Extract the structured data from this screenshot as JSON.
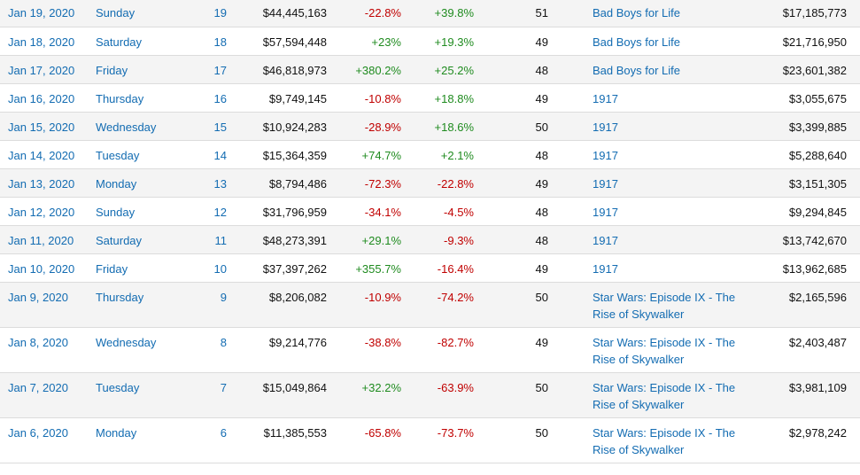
{
  "table": {
    "rows": [
      {
        "date": "Jan 19, 2020",
        "day": "Sunday",
        "num": "19",
        "gross": "$44,445,163",
        "pct_yd": "-22.8%",
        "pct_lw": "+39.8%",
        "theaters": "51",
        "release": "Bad Boys for Life",
        "release_gross": "$17,185,773"
      },
      {
        "date": "Jan 18, 2020",
        "day": "Saturday",
        "num": "18",
        "gross": "$57,594,448",
        "pct_yd": "+23%",
        "pct_lw": "+19.3%",
        "theaters": "49",
        "release": "Bad Boys for Life",
        "release_gross": "$21,716,950"
      },
      {
        "date": "Jan 17, 2020",
        "day": "Friday",
        "num": "17",
        "gross": "$46,818,973",
        "pct_yd": "+380.2%",
        "pct_lw": "+25.2%",
        "theaters": "48",
        "release": "Bad Boys for Life",
        "release_gross": "$23,601,382"
      },
      {
        "date": "Jan 16, 2020",
        "day": "Thursday",
        "num": "16",
        "gross": "$9,749,145",
        "pct_yd": "-10.8%",
        "pct_lw": "+18.8%",
        "theaters": "49",
        "release": "1917",
        "release_gross": "$3,055,675"
      },
      {
        "date": "Jan 15, 2020",
        "day": "Wednesday",
        "num": "15",
        "gross": "$10,924,283",
        "pct_yd": "-28.9%",
        "pct_lw": "+18.6%",
        "theaters": "50",
        "release": "1917",
        "release_gross": "$3,399,885"
      },
      {
        "date": "Jan 14, 2020",
        "day": "Tuesday",
        "num": "14",
        "gross": "$15,364,359",
        "pct_yd": "+74.7%",
        "pct_lw": "+2.1%",
        "theaters": "48",
        "release": "1917",
        "release_gross": "$5,288,640"
      },
      {
        "date": "Jan 13, 2020",
        "day": "Monday",
        "num": "13",
        "gross": "$8,794,486",
        "pct_yd": "-72.3%",
        "pct_lw": "-22.8%",
        "theaters": "49",
        "release": "1917",
        "release_gross": "$3,151,305"
      },
      {
        "date": "Jan 12, 2020",
        "day": "Sunday",
        "num": "12",
        "gross": "$31,796,959",
        "pct_yd": "-34.1%",
        "pct_lw": "-4.5%",
        "theaters": "48",
        "release": "1917",
        "release_gross": "$9,294,845"
      },
      {
        "date": "Jan 11, 2020",
        "day": "Saturday",
        "num": "11",
        "gross": "$48,273,391",
        "pct_yd": "+29.1%",
        "pct_lw": "-9.3%",
        "theaters": "48",
        "release": "1917",
        "release_gross": "$13,742,670"
      },
      {
        "date": "Jan 10, 2020",
        "day": "Friday",
        "num": "10",
        "gross": "$37,397,262",
        "pct_yd": "+355.7%",
        "pct_lw": "-16.4%",
        "theaters": "49",
        "release": "1917",
        "release_gross": "$13,962,685"
      },
      {
        "date": "Jan 9, 2020",
        "day": "Thursday",
        "num": "9",
        "gross": "$8,206,082",
        "pct_yd": "-10.9%",
        "pct_lw": "-74.2%",
        "theaters": "50",
        "release": "Star Wars: Episode IX - The Rise of Skywalker",
        "release_gross": "$2,165,596"
      },
      {
        "date": "Jan 8, 2020",
        "day": "Wednesday",
        "num": "8",
        "gross": "$9,214,776",
        "pct_yd": "-38.8%",
        "pct_lw": "-82.7%",
        "theaters": "49",
        "release": "Star Wars: Episode IX - The Rise of Skywalker",
        "release_gross": "$2,403,487"
      },
      {
        "date": "Jan 7, 2020",
        "day": "Tuesday",
        "num": "7",
        "gross": "$15,049,864",
        "pct_yd": "+32.2%",
        "pct_lw": "-63.9%",
        "theaters": "50",
        "release": "Star Wars: Episode IX - The Rise of Skywalker",
        "release_gross": "$3,981,109"
      },
      {
        "date": "Jan 6, 2020",
        "day": "Monday",
        "num": "6",
        "gross": "$11,385,553",
        "pct_yd": "-65.8%",
        "pct_lw": "-73.7%",
        "theaters": "50",
        "release": "Star Wars: Episode IX - The Rise of Skywalker",
        "release_gross": "$2,978,242"
      }
    ]
  },
  "colors": {
    "link": "#136cb2",
    "positive": "#1f8b1f",
    "negative": "#c00000",
    "stripe": "#f4f4f4"
  }
}
